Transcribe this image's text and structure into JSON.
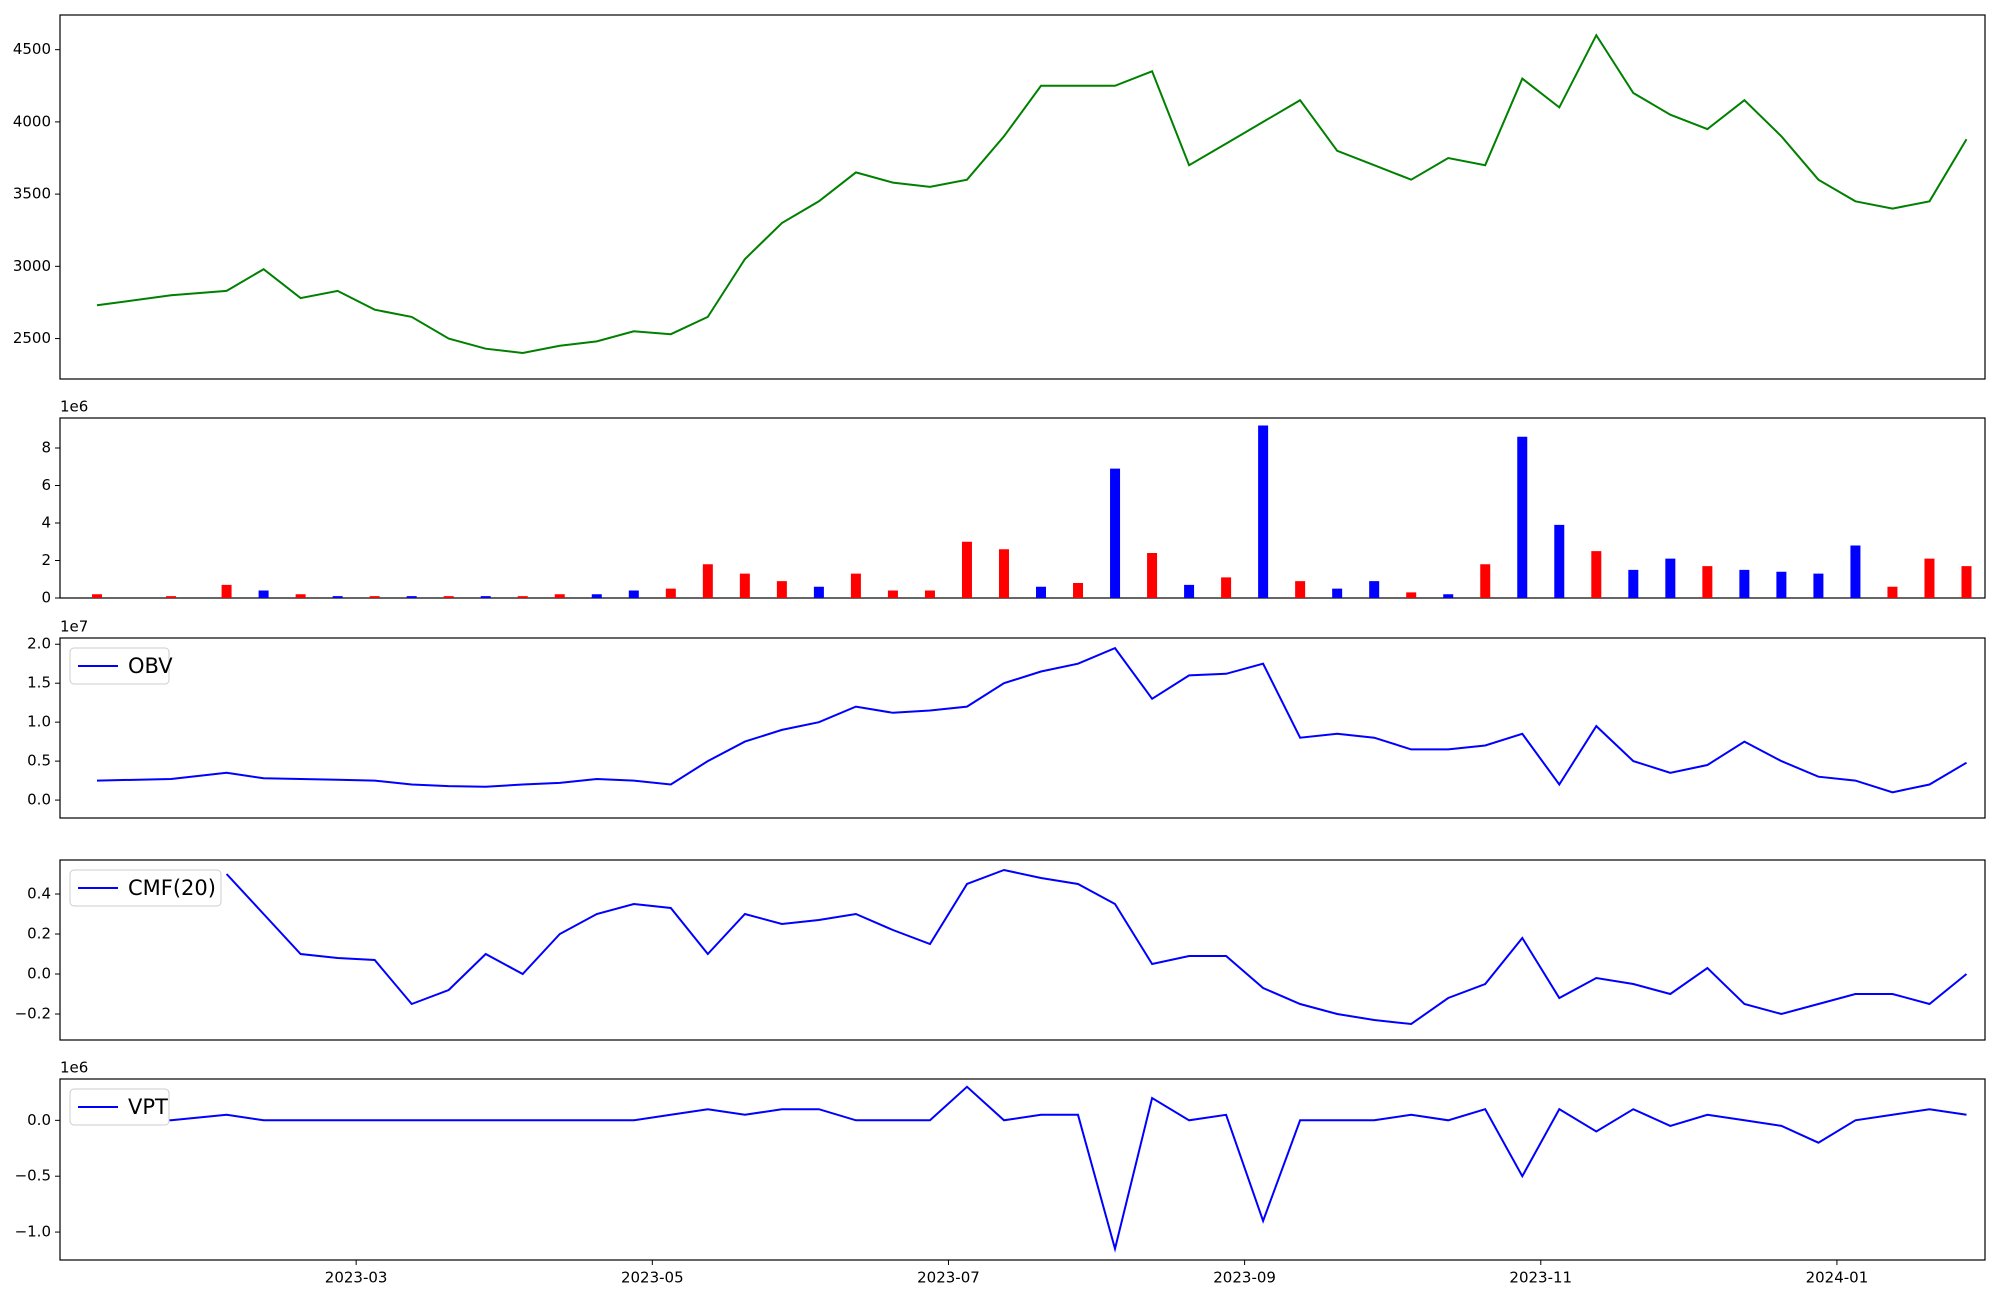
{
  "chart_data": [
    {
      "type": "line",
      "color": "#008000",
      "x": [
        "2023-01",
        "2023-01",
        "2023-02",
        "2023-02",
        "2023-02",
        "2023-02",
        "2023-03",
        "2023-03",
        "2023-03",
        "2023-03",
        "2023-04",
        "2023-04",
        "2023-04",
        "2023-04",
        "2023-05",
        "2023-05",
        "2023-05",
        "2023-05",
        "2023-06",
        "2023-06",
        "2023-06",
        "2023-06",
        "2023-07",
        "2023-07",
        "2023-07",
        "2023-07",
        "2023-08",
        "2023-08",
        "2023-08",
        "2023-08",
        "2023-09",
        "2023-09",
        "2023-09",
        "2023-09",
        "2023-10",
        "2023-10",
        "2023-10",
        "2023-10",
        "2023-11",
        "2023-11",
        "2023-11",
        "2023-11",
        "2023-12",
        "2023-12",
        "2023-12",
        "2023-12",
        "2024-01",
        "2024-01",
        "2024-01",
        "2024-01"
      ],
      "values": [
        2730,
        2800,
        2830,
        2980,
        2780,
        2830,
        2700,
        2650,
        2500,
        2430,
        2400,
        2450,
        2480,
        2550,
        2530,
        2650,
        3050,
        3300,
        3450,
        3650,
        3580,
        3550,
        3600,
        3900,
        4250,
        4250,
        4250,
        4350,
        3700,
        3850,
        4000,
        4150,
        3800,
        3700,
        3600,
        3750,
        3700,
        4300,
        4100,
        4600,
        4200,
        4050,
        3950,
        4150,
        3900,
        3600,
        3450,
        3400,
        3450,
        3880
      ],
      "xlim": [
        "2023-01",
        "2024-02"
      ],
      "ylim": [
        2220,
        4740
      ],
      "yticks": [
        2500,
        3000,
        3500,
        4000,
        4500
      ]
    },
    {
      "type": "bar",
      "offset_label": "1e6",
      "x": [
        "2023-01",
        "2023-01",
        "2023-02",
        "2023-02",
        "2023-02",
        "2023-02",
        "2023-03",
        "2023-03",
        "2023-03",
        "2023-03",
        "2023-04",
        "2023-04",
        "2023-04",
        "2023-04",
        "2023-05",
        "2023-05",
        "2023-05",
        "2023-05",
        "2023-06",
        "2023-06",
        "2023-06",
        "2023-06",
        "2023-07",
        "2023-07",
        "2023-07",
        "2023-07",
        "2023-08",
        "2023-08",
        "2023-08",
        "2023-08",
        "2023-09",
        "2023-09",
        "2023-09",
        "2023-09",
        "2023-10",
        "2023-10",
        "2023-10",
        "2023-10",
        "2023-11",
        "2023-11",
        "2023-11",
        "2023-11",
        "2023-12",
        "2023-12",
        "2023-12",
        "2023-12",
        "2024-01",
        "2024-01",
        "2024-01",
        "2024-01"
      ],
      "values": [
        0.2,
        0.1,
        0.7,
        0.4,
        0.2,
        0.1,
        0.1,
        0.1,
        0.1,
        0.1,
        0.1,
        0.2,
        0.2,
        0.4,
        0.5,
        1.8,
        1.3,
        0.9,
        0.6,
        1.3,
        0.4,
        0.4,
        3.0,
        2.6,
        0.6,
        0.8,
        6.9,
        2.4,
        0.7,
        1.1,
        9.2,
        0.9,
        0.5,
        0.9,
        0.3,
        0.2,
        1.8,
        8.6,
        3.9,
        2.5,
        1.5,
        2.1,
        1.7,
        1.5,
        1.4,
        1.3,
        2.8,
        0.6,
        2.1,
        1.7
      ],
      "colors": [
        "red",
        "red",
        "red",
        "blue",
        "red",
        "blue",
        "red",
        "blue",
        "red",
        "blue",
        "red",
        "red",
        "blue",
        "blue",
        "red",
        "red",
        "red",
        "red",
        "blue",
        "red",
        "red",
        "red",
        "red",
        "red",
        "blue",
        "red",
        "blue",
        "red",
        "blue",
        "red",
        "blue",
        "red",
        "blue",
        "blue",
        "red",
        "blue",
        "red",
        "blue",
        "blue",
        "red",
        "blue",
        "blue",
        "red",
        "blue",
        "blue",
        "blue",
        "blue",
        "red",
        "red",
        "red"
      ],
      "xlim": [
        "2023-01",
        "2024-02"
      ],
      "ylim": [
        0,
        9.6
      ],
      "yticks": [
        0,
        2,
        4,
        6,
        8
      ]
    },
    {
      "type": "line",
      "offset_label": "1e7",
      "legend": "upper left",
      "x": [
        "2023-01",
        "2023-01",
        "2023-02",
        "2023-02",
        "2023-02",
        "2023-02",
        "2023-03",
        "2023-03",
        "2023-03",
        "2023-03",
        "2023-04",
        "2023-04",
        "2023-04",
        "2023-04",
        "2023-05",
        "2023-05",
        "2023-05",
        "2023-05",
        "2023-06",
        "2023-06",
        "2023-06",
        "2023-06",
        "2023-07",
        "2023-07",
        "2023-07",
        "2023-07",
        "2023-08",
        "2023-08",
        "2023-08",
        "2023-08",
        "2023-09",
        "2023-09",
        "2023-09",
        "2023-09",
        "2023-10",
        "2023-10",
        "2023-10",
        "2023-10",
        "2023-11",
        "2023-11",
        "2023-11",
        "2023-11",
        "2023-12",
        "2023-12",
        "2023-12",
        "2023-12",
        "2024-01",
        "2024-01",
        "2024-01",
        "2024-01"
      ],
      "series": [
        {
          "name": "OBV",
          "color": "#0000ff",
          "values": [
            0.25,
            0.27,
            0.35,
            0.28,
            0.27,
            0.26,
            0.25,
            0.2,
            0.18,
            0.17,
            0.2,
            0.22,
            0.27,
            0.25,
            0.2,
            0.5,
            0.75,
            0.9,
            1.0,
            1.2,
            1.12,
            1.15,
            1.2,
            1.5,
            1.65,
            1.75,
            1.95,
            1.3,
            1.6,
            1.62,
            1.75,
            0.8,
            0.85,
            0.8,
            0.65,
            0.65,
            0.7,
            0.85,
            0.2,
            0.95,
            0.5,
            0.35,
            0.45,
            0.75,
            0.5,
            0.3,
            0.25,
            0.1,
            0.2,
            0.48
          ]
        }
      ],
      "xlim": [
        "2023-01",
        "2024-02"
      ],
      "ylim": [
        -0.23,
        2.08
      ],
      "yticks": [
        {
          "value": 0,
          "label": "0.0"
        },
        0.5,
        {
          "value": 1,
          "label": "1.0"
        },
        1.5,
        {
          "value": 2,
          "label": "2.0"
        }
      ]
    },
    {
      "type": "line",
      "legend": "upper left",
      "x": [
        "2023-01",
        "2023-01",
        "2023-02",
        "2023-02",
        "2023-02",
        "2023-02",
        "2023-03",
        "2023-03",
        "2023-03",
        "2023-03",
        "2023-04",
        "2023-04",
        "2023-04",
        "2023-04",
        "2023-05",
        "2023-05",
        "2023-05",
        "2023-05",
        "2023-06",
        "2023-06",
        "2023-06",
        "2023-06",
        "2023-07",
        "2023-07",
        "2023-07",
        "2023-07",
        "2023-08",
        "2023-08",
        "2023-08",
        "2023-08",
        "2023-09",
        "2023-09",
        "2023-09",
        "2023-09",
        "2023-10",
        "2023-10",
        "2023-10",
        "2023-10",
        "2023-11",
        "2023-11",
        "2023-11",
        "2023-11",
        "2023-12",
        "2023-12",
        "2023-12",
        "2023-12",
        "2024-01",
        "2024-01",
        "2024-01",
        "2024-01"
      ],
      "series": [
        {
          "name": "CMF(20)",
          "color": "#0000ff",
          "values": [
            null,
            null,
            0.5,
            0.3,
            0.1,
            0.08,
            0.07,
            -0.15,
            -0.08,
            0.1,
            0.0,
            0.2,
            0.3,
            0.35,
            0.33,
            0.1,
            0.3,
            0.25,
            0.27,
            0.3,
            0.22,
            0.15,
            0.45,
            0.52,
            0.48,
            0.45,
            0.35,
            0.05,
            0.09,
            0.09,
            -0.07,
            -0.15,
            -0.2,
            -0.23,
            -0.25,
            -0.12,
            -0.05,
            0.18,
            -0.12,
            -0.02,
            -0.05,
            -0.1,
            0.03,
            -0.15,
            -0.2,
            -0.15,
            -0.1,
            -0.1,
            -0.15,
            0.0
          ]
        }
      ],
      "xlim": [
        "2023-01",
        "2024-02"
      ],
      "ylim": [
        -0.33,
        0.57
      ],
      "yticks": [
        {
          "value": -0.2,
          "label": "−0.2"
        },
        {
          "value": 0,
          "label": "0.0"
        },
        0.2,
        0.4
      ]
    },
    {
      "type": "line",
      "offset_label": "1e6",
      "legend": "upper left",
      "x": [
        "2023-01",
        "2023-01",
        "2023-02",
        "2023-02",
        "2023-02",
        "2023-02",
        "2023-03",
        "2023-03",
        "2023-03",
        "2023-03",
        "2023-04",
        "2023-04",
        "2023-04",
        "2023-04",
        "2023-05",
        "2023-05",
        "2023-05",
        "2023-05",
        "2023-06",
        "2023-06",
        "2023-06",
        "2023-06",
        "2023-07",
        "2023-07",
        "2023-07",
        "2023-07",
        "2023-08",
        "2023-08",
        "2023-08",
        "2023-08",
        "2023-09",
        "2023-09",
        "2023-09",
        "2023-09",
        "2023-10",
        "2023-10",
        "2023-10",
        "2023-10",
        "2023-11",
        "2023-11",
        "2023-11",
        "2023-11",
        "2023-12",
        "2023-12",
        "2023-12",
        "2023-12",
        "2024-01",
        "2024-01",
        "2024-01",
        "2024-01"
      ],
      "series": [
        {
          "name": "VPT",
          "color": "#0000ff",
          "values": [
            0,
            0,
            0.05,
            0,
            0,
            0,
            0,
            0,
            0,
            0,
            0,
            0,
            0,
            0,
            0.05,
            0.1,
            0.05,
            0.1,
            0.1,
            0,
            0,
            0,
            0.3,
            0,
            0.05,
            0.05,
            -1.15,
            0.2,
            0,
            0.05,
            -0.9,
            0,
            0,
            0,
            0.05,
            0,
            0.1,
            -0.5,
            0.1,
            -0.1,
            0.1,
            -0.05,
            0.05,
            0,
            -0.05,
            -0.2,
            0,
            0.05,
            0.1,
            0.05
          ]
        }
      ],
      "xlim": [
        "2023-01",
        "2024-02"
      ],
      "ylim": [
        -1.25,
        0.37
      ],
      "yticks": [
        {
          "value": -1,
          "label": "−1.0"
        },
        {
          "value": -0.5,
          "label": "−0.5"
        },
        {
          "value": 0,
          "label": "0.0"
        }
      ],
      "xticks": [
        "2023-03",
        "2023-05",
        "2023-07",
        "2023-09",
        "2023-11",
        "2024-01"
      ]
    }
  ]
}
